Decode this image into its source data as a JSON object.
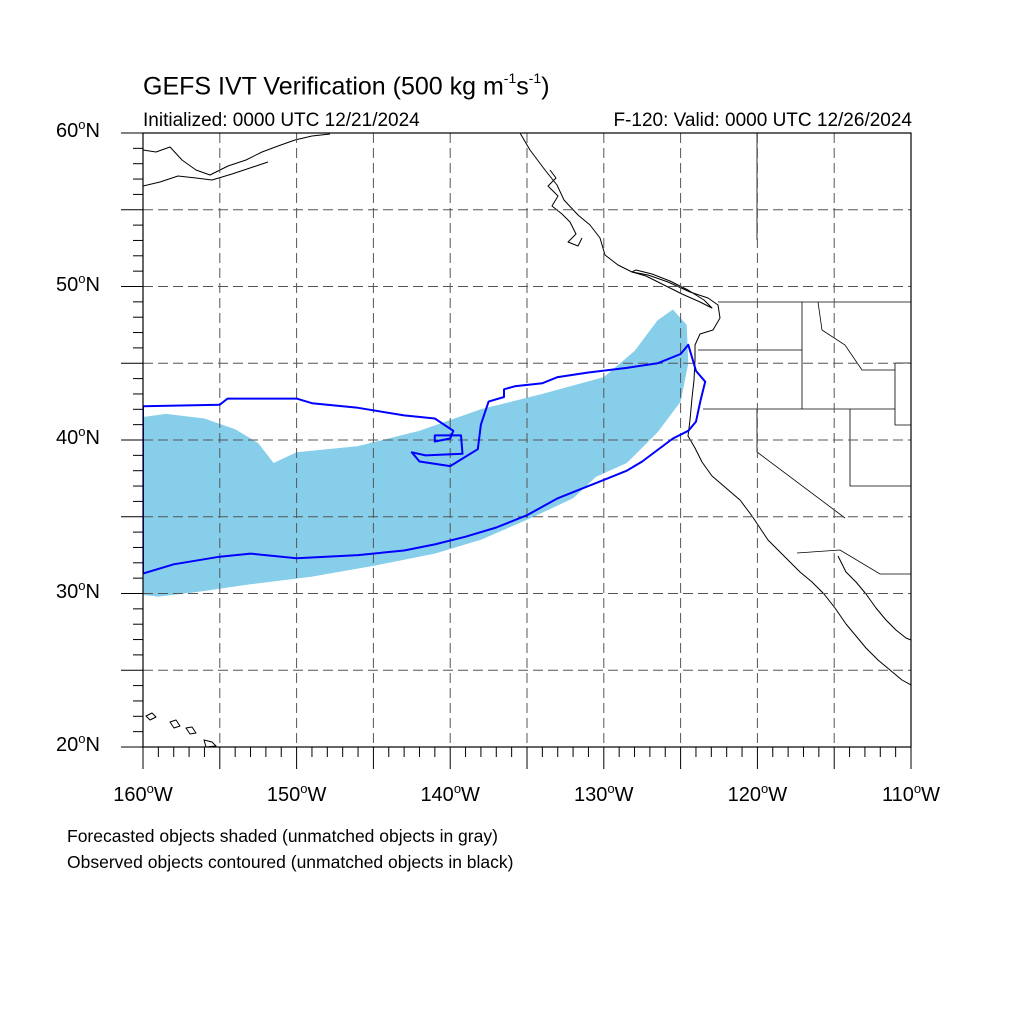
{
  "header": {
    "title_main": "GEFS IVT Verification (500 kg m",
    "title_exp1": "-1",
    "title_mid": "s",
    "title_exp2": "-1",
    "title_end": ")",
    "initialized": "Initialized: 0000 UTC 12/21/2024",
    "valid": "F-120: Valid: 0000 UTC 12/26/2024"
  },
  "axes": {
    "lon_range": [
      -160,
      -110
    ],
    "lat_range": [
      20,
      60
    ],
    "lat_labels": [
      {
        "value": 60,
        "num": "60",
        "hem": "N"
      },
      {
        "value": 50,
        "num": "50",
        "hem": "N"
      },
      {
        "value": 40,
        "num": "40",
        "hem": "N"
      },
      {
        "value": 30,
        "num": "30",
        "hem": "N"
      },
      {
        "value": 20,
        "num": "20",
        "hem": "N"
      }
    ],
    "lon_labels": [
      {
        "value": -160,
        "num": "160",
        "hem": "W"
      },
      {
        "value": -150,
        "num": "150",
        "hem": "W"
      },
      {
        "value": -140,
        "num": "140",
        "hem": "W"
      },
      {
        "value": -130,
        "num": "130",
        "hem": "W"
      },
      {
        "value": -120,
        "num": "120",
        "hem": "W"
      },
      {
        "value": -110,
        "num": "110",
        "hem": "W"
      }
    ],
    "grid": true,
    "grid_step_deg": 5
  },
  "legend": {
    "line1": "Forecasted objects shaded (unmatched objects in gray)",
    "line2": "Observed objects contoured (unmatched objects in black)"
  },
  "colors": {
    "forecast_fill": "#87ceeb",
    "observed_contour": "#0000ff",
    "coastline": "#000000",
    "grid": "#555555"
  },
  "map_data": {
    "forecast_object": [
      [
        -160,
        41.5
      ],
      [
        -158.5,
        41.7
      ],
      [
        -156,
        41.4
      ],
      [
        -154,
        40.7
      ],
      [
        -152.5,
        39.8
      ],
      [
        -151.5,
        38.5
      ],
      [
        -150,
        39.2
      ],
      [
        -146,
        39.6
      ],
      [
        -142,
        40.6
      ],
      [
        -138,
        42.0
      ],
      [
        -134,
        43.0
      ],
      [
        -130,
        44.1
      ],
      [
        -128,
        45.8
      ],
      [
        -126.5,
        47.8
      ],
      [
        -125.5,
        48.5
      ],
      [
        -124.6,
        47.5
      ],
      [
        -124.5,
        45.0
      ],
      [
        -125,
        42.5
      ],
      [
        -126.5,
        40.5
      ],
      [
        -128.5,
        38.5
      ],
      [
        -130.5,
        37.6
      ],
      [
        -132,
        36.2
      ],
      [
        -135,
        34.8
      ],
      [
        -138,
        33.5
      ],
      [
        -141,
        32.6
      ],
      [
        -145,
        31.8
      ],
      [
        -149,
        31.1
      ],
      [
        -153,
        30.6
      ],
      [
        -156.5,
        30.1
      ],
      [
        -159,
        29.8
      ],
      [
        -160,
        29.9
      ]
    ],
    "observed_contour": [
      [
        -160,
        42.2
      ],
      [
        -155,
        42.3
      ],
      [
        -154.5,
        42.7
      ],
      [
        -150,
        42.7
      ],
      [
        -149,
        42.4
      ],
      [
        -146,
        42.1
      ],
      [
        -143,
        41.6
      ],
      [
        -141,
        41.4
      ],
      [
        -139.8,
        40.6
      ],
      [
        -140,
        40.1
      ],
      [
        -141,
        39.9
      ],
      [
        -141,
        40.3
      ],
      [
        -139.3,
        40.3
      ],
      [
        -139.2,
        39.1
      ],
      [
        -141.6,
        39.0
      ],
      [
        -142.5,
        39.2
      ],
      [
        -142,
        38.6
      ],
      [
        -140,
        38.3
      ],
      [
        -138.2,
        39.4
      ],
      [
        -138,
        41.0
      ],
      [
        -137.5,
        42.5
      ],
      [
        -136.5,
        42.8
      ],
      [
        -136.5,
        43.3
      ],
      [
        -135.8,
        43.5
      ],
      [
        -134,
        43.7
      ],
      [
        -133,
        44.1
      ],
      [
        -131,
        44.4
      ],
      [
        -128.5,
        44.7
      ],
      [
        -126.5,
        45.0
      ],
      [
        -125,
        45.6
      ],
      [
        -124.5,
        46.2
      ],
      [
        -124,
        44.5
      ],
      [
        -123.4,
        43.8
      ],
      [
        -123.7,
        42.6
      ],
      [
        -124.0,
        41.2
      ],
      [
        -124.5,
        40.6
      ],
      [
        -125.5,
        40.1
      ],
      [
        -127.5,
        38.6
      ],
      [
        -128.5,
        38.0
      ],
      [
        -130,
        37.4
      ],
      [
        -131.5,
        36.8
      ],
      [
        -133,
        36.2
      ],
      [
        -135,
        35.1
      ],
      [
        -137,
        34.3
      ],
      [
        -139,
        33.7
      ],
      [
        -141,
        33.2
      ],
      [
        -143,
        32.8
      ],
      [
        -146,
        32.5
      ],
      [
        -150,
        32.3
      ],
      [
        -153,
        32.6
      ],
      [
        -155,
        32.4
      ],
      [
        -158,
        31.9
      ],
      [
        -160,
        31.3
      ]
    ]
  }
}
